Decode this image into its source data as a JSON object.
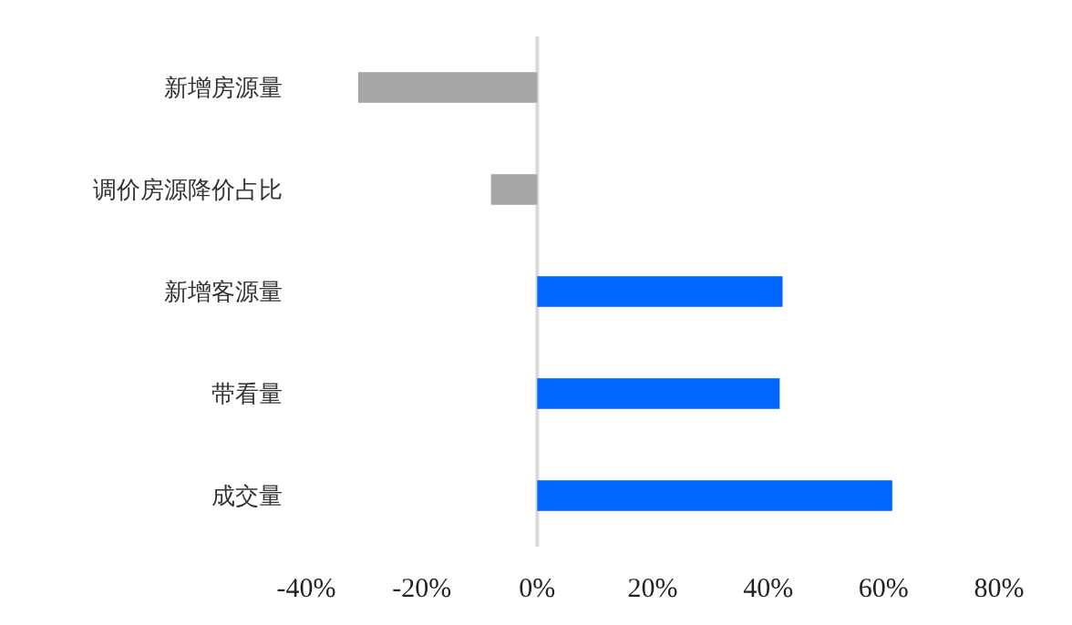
{
  "chart_data": {
    "type": "bar",
    "orientation": "horizontal",
    "categories": [
      "新增房源量",
      "调价房源降价占比",
      "新增客源量",
      "带看量",
      "成交量"
    ],
    "values": [
      -31,
      -8,
      42.5,
      42,
      61.5
    ],
    "colors": [
      "#a6a6a6",
      "#a6a6a6",
      "#0066ff",
      "#0066ff",
      "#0066ff"
    ],
    "xlim": [
      -40,
      80
    ],
    "xticks": [
      {
        "value": -40,
        "label": "-40%"
      },
      {
        "value": -20,
        "label": "-20%"
      },
      {
        "value": 0,
        "label": "0%"
      },
      {
        "value": 20,
        "label": "20%"
      },
      {
        "value": 40,
        "label": "40%"
      },
      {
        "value": 60,
        "label": "60%"
      },
      {
        "value": 80,
        "label": "80%"
      }
    ],
    "tick_labels": "x"
  }
}
